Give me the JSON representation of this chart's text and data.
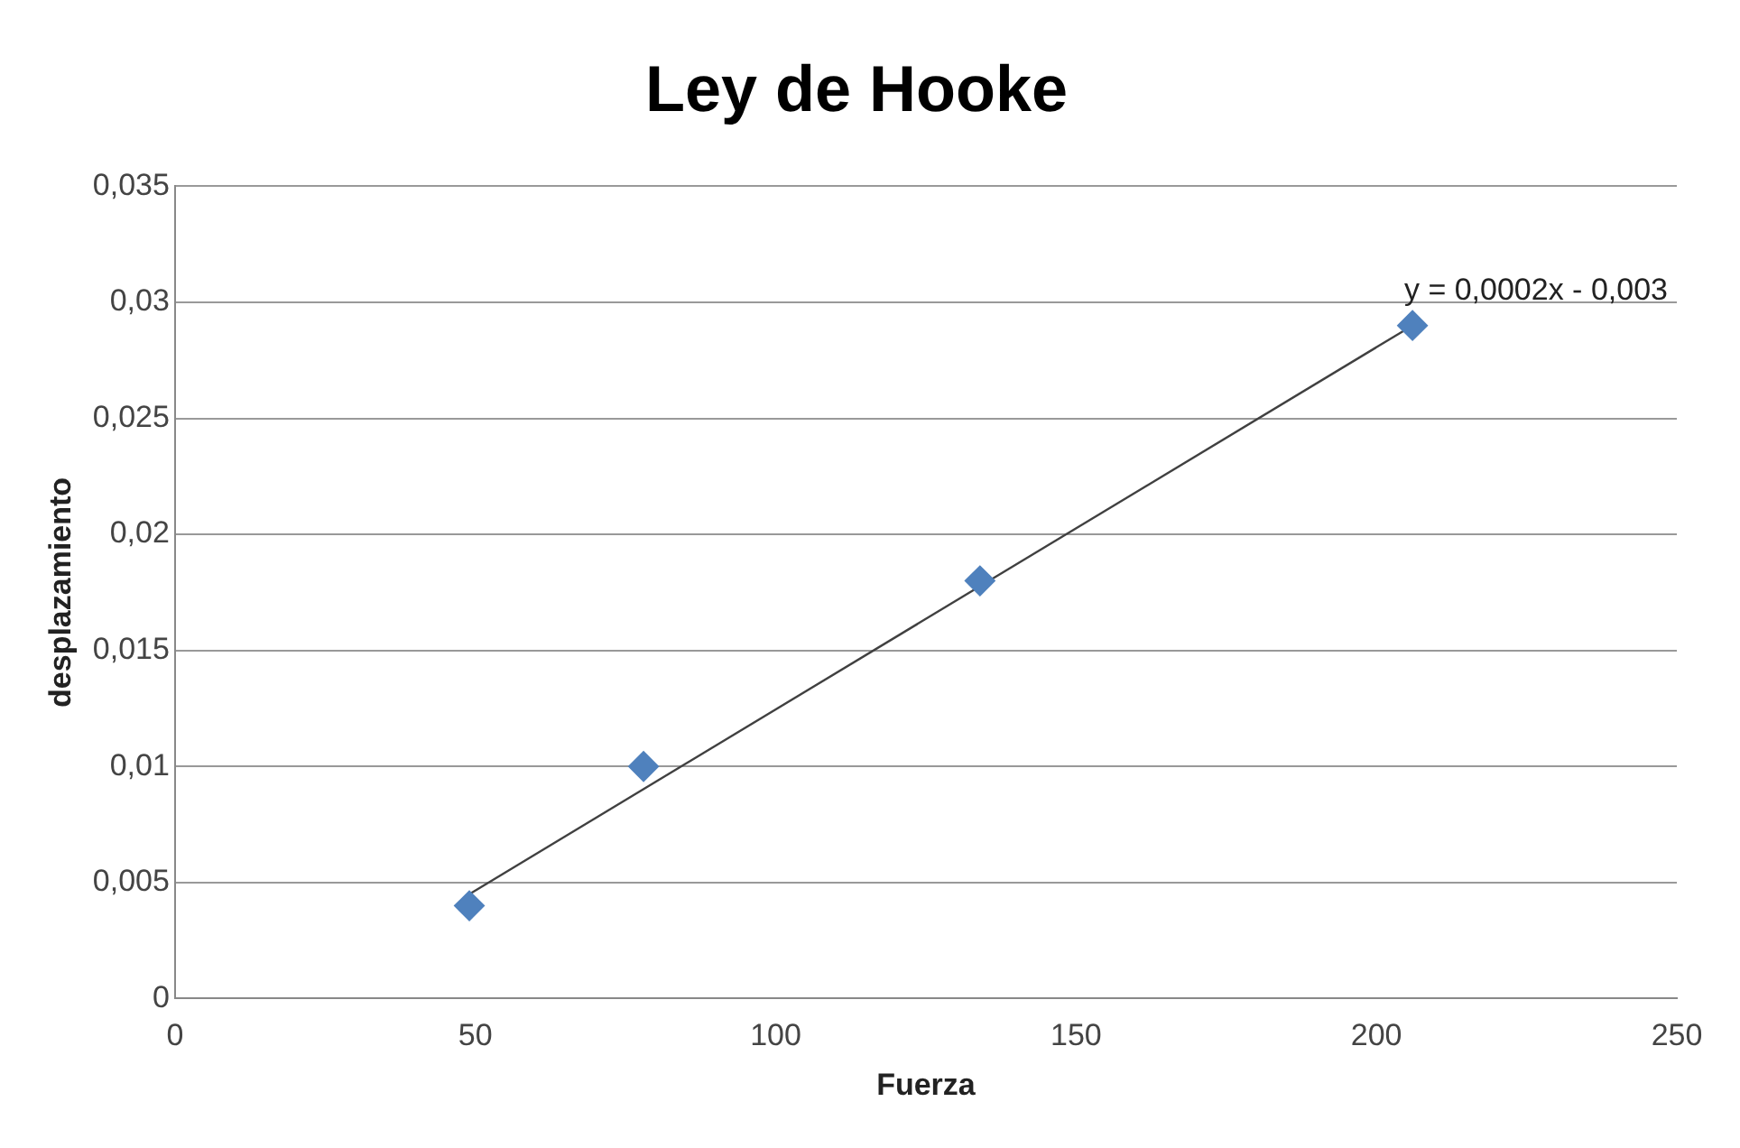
{
  "chart_data": {
    "type": "scatter",
    "title": "Ley de Hooke",
    "xlabel": "Fuerza",
    "ylabel": "desplazamiento",
    "marker": "diamond",
    "series": [
      {
        "color": "#4f81bd",
        "x": [
          49,
          78,
          134,
          206
        ],
        "values": [
          0.004,
          0.01,
          0.018,
          0.029
        ]
      },
      {
        "type": "line",
        "color": "#404040",
        "marker": "none",
        "x": [
          49,
          206
        ],
        "values": [
          0.0045,
          0.029
        ]
      }
    ],
    "annotations": [
      "y = 0,0002x - 0,003"
    ],
    "xlim": [
      0,
      250
    ],
    "xticks": [
      0,
      50,
      100,
      150,
      200,
      250
    ],
    "ylim": [
      0,
      0.035
    ],
    "yticks": [
      0,
      {
        "value": 0.005,
        "label": "0,005"
      },
      {
        "value": 0.01,
        "label": "0,01"
      },
      {
        "value": 0.015,
        "label": "0,015"
      },
      {
        "value": 0.02,
        "label": "0,02"
      },
      {
        "value": 0.025,
        "label": "0,025"
      },
      {
        "value": 0.03,
        "label": "0,03"
      },
      {
        "value": 0.035,
        "label": "0,035"
      }
    ],
    "grid": "y",
    "legend": false
  }
}
